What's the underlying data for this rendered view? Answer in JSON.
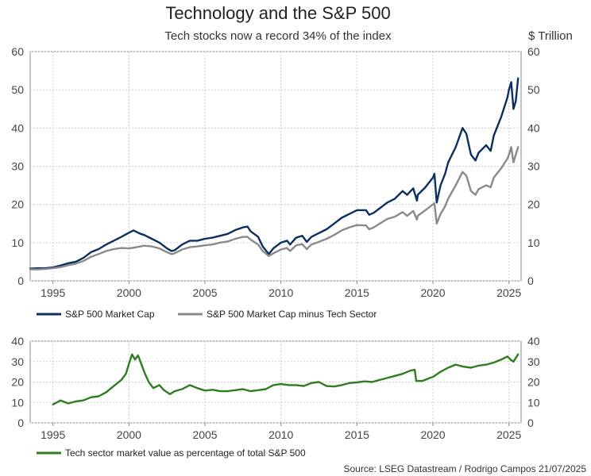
{
  "header": {
    "title": "Technology and the S&P 500",
    "subtitle": "Tech stocks now a record 34% of the index",
    "unit": "$ Trillion"
  },
  "source": "Source: LSEG Datastream / Rodrigo Campos 21/07/2025",
  "colors": {
    "navy": "#0b2f5e",
    "gray": "#8a8a8a",
    "green": "#2e7d1f",
    "grid": "#cfcfcf",
    "axis": "#888888"
  },
  "chart_data": [
    {
      "type": "line",
      "title": "Technology and the S&P 500",
      "subtitle": "Tech stocks now a record 34% of the index",
      "ylabel": "$ Trillion",
      "xlim": [
        1993.5,
        2025.8
      ],
      "ylim": [
        0,
        60
      ],
      "yticks": [
        0,
        10,
        20,
        30,
        40,
        50,
        60
      ],
      "xticks": [
        1995,
        2000,
        2005,
        2010,
        2015,
        2020,
        2025
      ],
      "grid": true,
      "legend": "bottom",
      "series": [
        {
          "name": "S&P 500 Market Cap",
          "color": "#0b2f5e",
          "points": [
            [
              1993.5,
              3.2
            ],
            [
              1994,
              3.3
            ],
            [
              1994.5,
              3.3
            ],
            [
              1995,
              3.5
            ],
            [
              1995.5,
              4
            ],
            [
              1996,
              4.6
            ],
            [
              1996.5,
              5
            ],
            [
              1997,
              6
            ],
            [
              1997.5,
              7.5
            ],
            [
              1998,
              8.3
            ],
            [
              1998.5,
              9.5
            ],
            [
              1999,
              10.5
            ],
            [
              1999.5,
              11.5
            ],
            [
              2000,
              12.6
            ],
            [
              2000.3,
              13.2
            ],
            [
              2000.7,
              12.4
            ],
            [
              2001,
              12
            ],
            [
              2001.5,
              11
            ],
            [
              2002,
              10
            ],
            [
              2002.5,
              8.5
            ],
            [
              2002.8,
              7.8
            ],
            [
              2003,
              8
            ],
            [
              2003.5,
              9.5
            ],
            [
              2004,
              10.5
            ],
            [
              2004.5,
              10.5
            ],
            [
              2005,
              11
            ],
            [
              2005.5,
              11.3
            ],
            [
              2006,
              11.8
            ],
            [
              2006.5,
              12.3
            ],
            [
              2007,
              13.3
            ],
            [
              2007.5,
              14
            ],
            [
              2007.8,
              14.2
            ],
            [
              2008,
              13
            ],
            [
              2008.5,
              11.5
            ],
            [
              2008.8,
              9
            ],
            [
              2009.2,
              7
            ],
            [
              2009.5,
              8.5
            ],
            [
              2010,
              10
            ],
            [
              2010.4,
              10.5
            ],
            [
              2010.6,
              9.5
            ],
            [
              2011,
              11.3
            ],
            [
              2011.4,
              11.8
            ],
            [
              2011.7,
              10.2
            ],
            [
              2012,
              11.5
            ],
            [
              2012.5,
              12.5
            ],
            [
              2013,
              13.5
            ],
            [
              2013.5,
              15
            ],
            [
              2014,
              16.5
            ],
            [
              2014.5,
              17.5
            ],
            [
              2015,
              18.5
            ],
            [
              2015.6,
              18.5
            ],
            [
              2015.8,
              17.3
            ],
            [
              2016.1,
              17.8
            ],
            [
              2016.5,
              19
            ],
            [
              2017,
              20.5
            ],
            [
              2017.5,
              21.5
            ],
            [
              2018,
              23.5
            ],
            [
              2018.3,
              22.5
            ],
            [
              2018.7,
              24.2
            ],
            [
              2018.95,
              21
            ],
            [
              2019,
              22.5
            ],
            [
              2019.5,
              24.5
            ],
            [
              2020,
              27
            ],
            [
              2020.1,
              28
            ],
            [
              2020.25,
              20.5
            ],
            [
              2020.5,
              25
            ],
            [
              2020.8,
              28
            ],
            [
              2021,
              31
            ],
            [
              2021.5,
              35
            ],
            [
              2021.95,
              40
            ],
            [
              2022.2,
              38.5
            ],
            [
              2022.5,
              33
            ],
            [
              2022.8,
              31.5
            ],
            [
              2023,
              33.5
            ],
            [
              2023.5,
              35.5
            ],
            [
              2023.8,
              34
            ],
            [
              2024,
              38
            ],
            [
              2024.5,
              43
            ],
            [
              2024.9,
              48
            ],
            [
              2025,
              50
            ],
            [
              2025.15,
              52
            ],
            [
              2025.3,
              45
            ],
            [
              2025.45,
              47
            ],
            [
              2025.6,
              53
            ]
          ]
        },
        {
          "name": "S&P 500 Market Cap minus Tech Sector",
          "color": "#8a8a8a",
          "points": [
            [
              1993.5,
              3.0
            ],
            [
              1994,
              3.0
            ],
            [
              1994.5,
              3.1
            ],
            [
              1995,
              3.3
            ],
            [
              1995.5,
              3.6
            ],
            [
              1996,
              4.1
            ],
            [
              1996.5,
              4.5
            ],
            [
              1997,
              5.2
            ],
            [
              1997.5,
              6.3
            ],
            [
              1998,
              7
            ],
            [
              1998.5,
              7.8
            ],
            [
              1999,
              8.3
            ],
            [
              1999.5,
              8.6
            ],
            [
              2000,
              8.5
            ],
            [
              2000.5,
              8.8
            ],
            [
              2001,
              9.2
            ],
            [
              2001.5,
              9
            ],
            [
              2002,
              8.5
            ],
            [
              2002.5,
              7.5
            ],
            [
              2002.8,
              7
            ],
            [
              2003,
              7.2
            ],
            [
              2003.5,
              8.2
            ],
            [
              2004,
              8.8
            ],
            [
              2004.5,
              9
            ],
            [
              2005,
              9.3
            ],
            [
              2005.5,
              9.5
            ],
            [
              2006,
              10
            ],
            [
              2006.5,
              10.3
            ],
            [
              2007,
              11
            ],
            [
              2007.5,
              11.5
            ],
            [
              2007.8,
              11.5
            ],
            [
              2008,
              10.8
            ],
            [
              2008.5,
              9.5
            ],
            [
              2008.8,
              7.8
            ],
            [
              2009.2,
              6.5
            ],
            [
              2009.5,
              7.2
            ],
            [
              2010,
              8.2
            ],
            [
              2010.4,
              8.6
            ],
            [
              2010.6,
              7.8
            ],
            [
              2011,
              9.3
            ],
            [
              2011.4,
              9.6
            ],
            [
              2011.7,
              8.3
            ],
            [
              2012,
              9.5
            ],
            [
              2012.5,
              10.2
            ],
            [
              2013,
              11
            ],
            [
              2013.5,
              12
            ],
            [
              2014,
              13.2
            ],
            [
              2014.5,
              14
            ],
            [
              2015,
              14.6
            ],
            [
              2015.6,
              14.5
            ],
            [
              2015.8,
              13.5
            ],
            [
              2016.1,
              14
            ],
            [
              2016.5,
              15
            ],
            [
              2017,
              16.2
            ],
            [
              2017.5,
              16.8
            ],
            [
              2018,
              18
            ],
            [
              2018.3,
              17
            ],
            [
              2018.7,
              18.3
            ],
            [
              2018.95,
              16
            ],
            [
              2019,
              17
            ],
            [
              2019.5,
              18.5
            ],
            [
              2020,
              20
            ],
            [
              2020.1,
              20.3
            ],
            [
              2020.25,
              15
            ],
            [
              2020.5,
              17.5
            ],
            [
              2020.8,
              19.5
            ],
            [
              2021,
              21.5
            ],
            [
              2021.5,
              25
            ],
            [
              2021.95,
              28.5
            ],
            [
              2022.2,
              27.5
            ],
            [
              2022.5,
              23.5
            ],
            [
              2022.8,
              22.5
            ],
            [
              2023,
              24
            ],
            [
              2023.5,
              25
            ],
            [
              2023.8,
              24.5
            ],
            [
              2024,
              27
            ],
            [
              2024.5,
              29.5
            ],
            [
              2024.9,
              32
            ],
            [
              2025,
              33
            ],
            [
              2025.15,
              35
            ],
            [
              2025.3,
              31
            ],
            [
              2025.45,
              33
            ],
            [
              2025.6,
              35
            ]
          ]
        }
      ]
    },
    {
      "type": "line",
      "title": "",
      "xlim": [
        1993.5,
        2025.8
      ],
      "ylim": [
        0,
        40
      ],
      "yticks": [
        0,
        10,
        20,
        30,
        40
      ],
      "xticks": [
        1995,
        2000,
        2005,
        2010,
        2015,
        2020,
        2025
      ],
      "grid": true,
      "legend": "bottom",
      "series": [
        {
          "name": "Tech sector market value as percentage of total S&P 500",
          "color": "#2e7d1f",
          "points": [
            [
              1995,
              9
            ],
            [
              1995.5,
              11
            ],
            [
              1996,
              9.5
            ],
            [
              1996.5,
              10.5
            ],
            [
              1997,
              11
            ],
            [
              1997.5,
              12.5
            ],
            [
              1998,
              13
            ],
            [
              1998.5,
              15
            ],
            [
              1999,
              18
            ],
            [
              1999.5,
              21
            ],
            [
              1999.8,
              24
            ],
            [
              2000,
              29
            ],
            [
              2000.2,
              33.5
            ],
            [
              2000.4,
              31
            ],
            [
              2000.6,
              33
            ],
            [
              2000.8,
              29
            ],
            [
              2001,
              25
            ],
            [
              2001.3,
              20
            ],
            [
              2001.6,
              17
            ],
            [
              2002,
              18.5
            ],
            [
              2002.3,
              16
            ],
            [
              2002.7,
              14
            ],
            [
              2003,
              15.5
            ],
            [
              2003.5,
              16.5
            ],
            [
              2004,
              18.5
            ],
            [
              2004.5,
              17
            ],
            [
              2005,
              15.8
            ],
            [
              2005.5,
              16.2
            ],
            [
              2006,
              15.5
            ],
            [
              2006.5,
              15.5
            ],
            [
              2007,
              16
            ],
            [
              2007.5,
              16.5
            ],
            [
              2008,
              15.5
            ],
            [
              2008.5,
              16
            ],
            [
              2009,
              16.5
            ],
            [
              2009.5,
              18.5
            ],
            [
              2010,
              19
            ],
            [
              2010.5,
              18.5
            ],
            [
              2011,
              18.5
            ],
            [
              2011.5,
              18
            ],
            [
              2012,
              19.5
            ],
            [
              2012.5,
              20
            ],
            [
              2013,
              18
            ],
            [
              2013.5,
              17.8
            ],
            [
              2014,
              18.5
            ],
            [
              2014.5,
              19.5
            ],
            [
              2015,
              19.8
            ],
            [
              2015.5,
              20.3
            ],
            [
              2016,
              20
            ],
            [
              2016.5,
              21
            ],
            [
              2017,
              22
            ],
            [
              2017.5,
              23
            ],
            [
              2018,
              24
            ],
            [
              2018.5,
              25.5
            ],
            [
              2018.8,
              26
            ],
            [
              2018.9,
              20.5
            ],
            [
              2019.3,
              20.5
            ],
            [
              2019.8,
              22
            ],
            [
              2020,
              22.5
            ],
            [
              2020.5,
              25
            ],
            [
              2021,
              27
            ],
            [
              2021.5,
              28.5
            ],
            [
              2022,
              27.5
            ],
            [
              2022.5,
              27
            ],
            [
              2023,
              28
            ],
            [
              2023.5,
              28.5
            ],
            [
              2024,
              29.5
            ],
            [
              2024.5,
              31
            ],
            [
              2024.9,
              32.5
            ],
            [
              2025.1,
              31
            ],
            [
              2025.3,
              30
            ],
            [
              2025.6,
              33.5
            ]
          ]
        }
      ]
    }
  ]
}
